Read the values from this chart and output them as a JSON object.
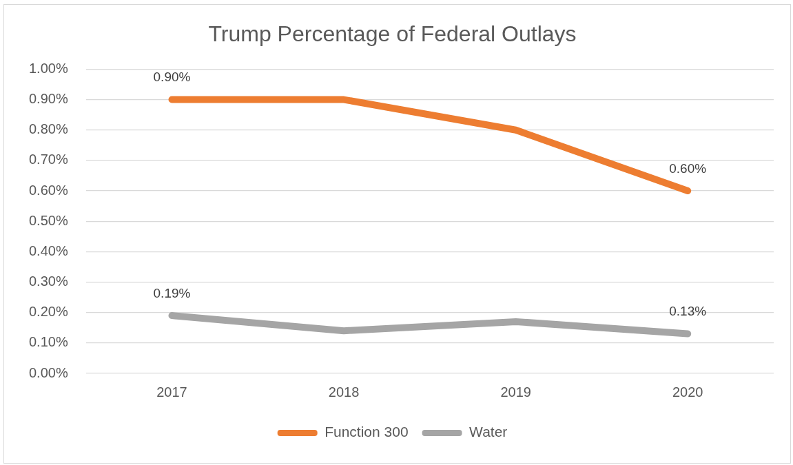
{
  "chart_data": {
    "type": "line",
    "title": "Trump Percentage of Federal Outlays",
    "categories": [
      "2017",
      "2018",
      "2019",
      "2020"
    ],
    "series": [
      {
        "name": "Function 300",
        "color": "#ed7d31",
        "values": [
          0.9,
          0.9,
          0.8,
          0.6
        ],
        "value_labels": [
          "0.90%",
          null,
          null,
          "0.60%"
        ]
      },
      {
        "name": "Water",
        "color": "#a5a5a5",
        "values": [
          0.19,
          0.14,
          0.17,
          0.13
        ],
        "value_labels": [
          "0.19%",
          null,
          null,
          "0.13%"
        ]
      }
    ],
    "ylim": [
      0,
      1
    ],
    "yticks": [
      {
        "value": 0,
        "label": "0.00%"
      },
      {
        "value": 0.1,
        "label": "0.10%"
      },
      {
        "value": 0.2,
        "label": "0.20%"
      },
      {
        "value": 0.3,
        "label": "0.30%"
      },
      {
        "value": 0.4,
        "label": "0.40%"
      },
      {
        "value": 0.5,
        "label": "0.50%"
      },
      {
        "value": 0.6,
        "label": "0.60%"
      },
      {
        "value": 0.7,
        "label": "0.70%"
      },
      {
        "value": 0.8,
        "label": "0.80%"
      },
      {
        "value": 0.9,
        "label": "0.90%"
      },
      {
        "value": 1,
        "label": "1.00%"
      }
    ],
    "grid": "y",
    "legend": "bottom",
    "marker": "none"
  }
}
